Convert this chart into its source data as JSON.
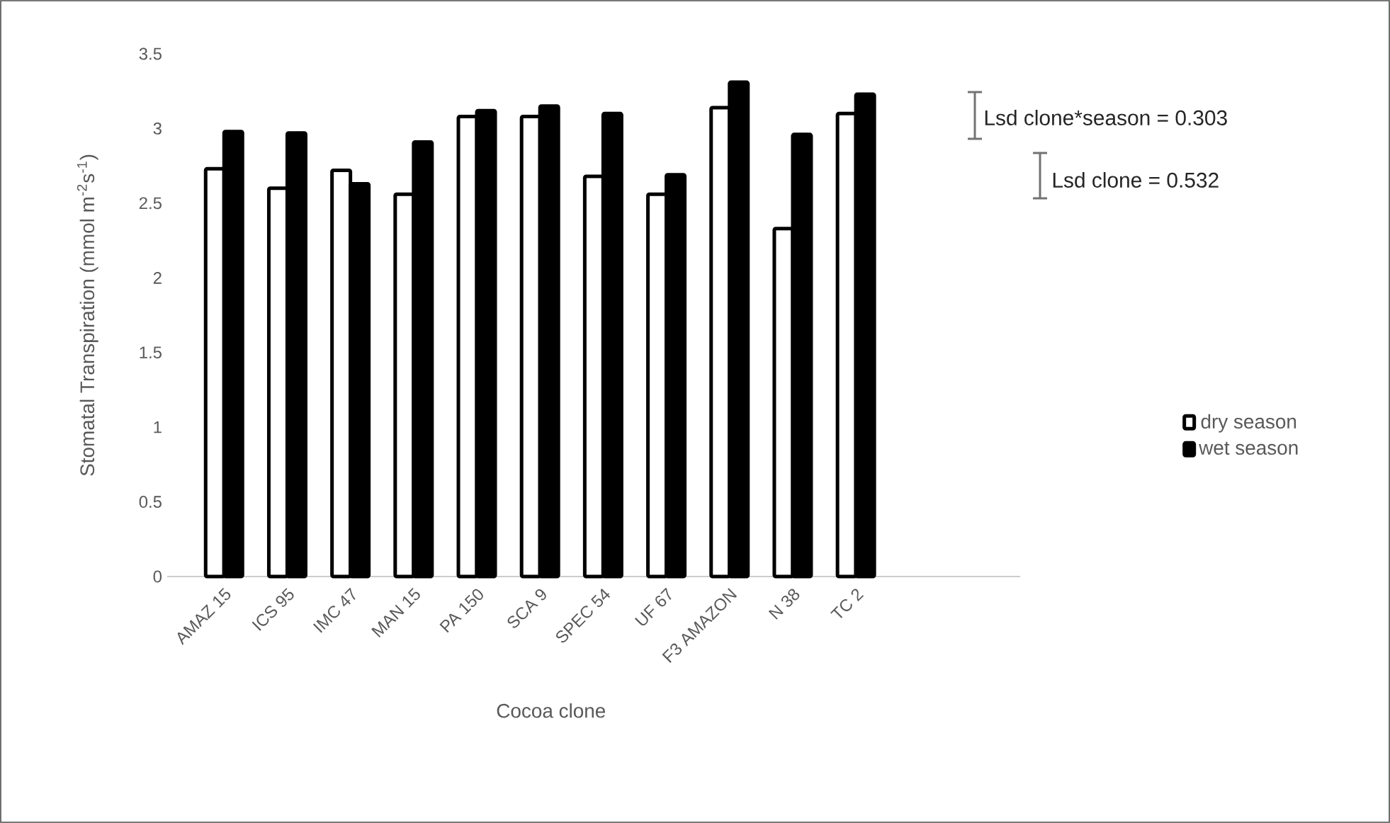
{
  "chart_data": {
    "type": "bar",
    "xlabel": "Cocoa clone",
    "ylabel": "Stomatal Transpiration (mmol m$^{-2}$s$^{-1}$)",
    "categories": [
      "AMAZ 15",
      "ICS 95",
      "IMC 47",
      "MAN 15",
      "PA 150",
      "SCA 9",
      "SPEC 54",
      "UF 67",
      "F3 AMAZON",
      "N 38",
      "TC 2"
    ],
    "series": [
      {
        "name": "dry season",
        "color": "#ffffff",
        "values": [
          2.73,
          2.6,
          2.72,
          2.56,
          3.08,
          3.08,
          2.68,
          2.56,
          3.14,
          2.33,
          3.1
        ]
      },
      {
        "name": "wet season",
        "color": "#000000",
        "values": [
          2.98,
          2.97,
          2.63,
          2.91,
          3.12,
          3.15,
          3.1,
          2.69,
          3.31,
          2.96,
          3.23
        ]
      }
    ],
    "ylim": [
      0,
      3.5
    ],
    "yticks": [
      0,
      0.5,
      1,
      1.5,
      2,
      2.5,
      3,
      3.5
    ],
    "grid": false,
    "legend": "right",
    "annotations": [
      "Lsd clone*season = 0.303",
      "Lsd clone = 0.532"
    ]
  }
}
